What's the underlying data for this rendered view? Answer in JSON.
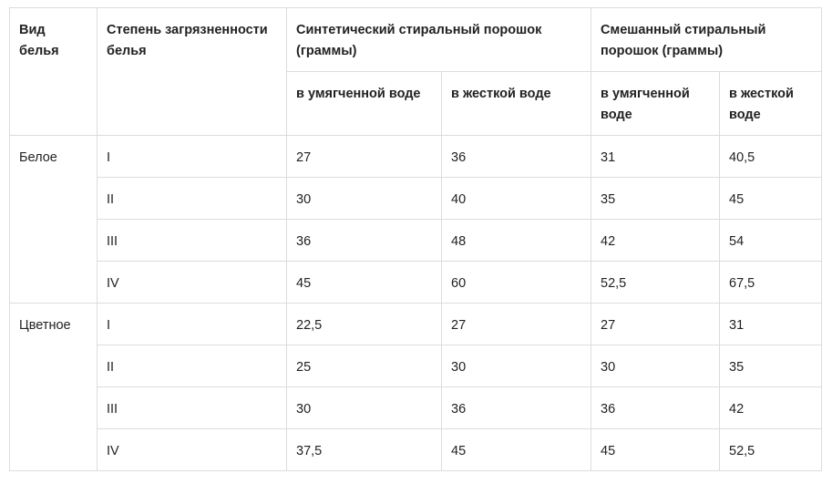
{
  "header": {
    "col_type": "Вид белья",
    "col_degree": "Степень загрязненности белья",
    "group_synthetic": "Синтетический стиральный порошок (граммы)",
    "group_mixed": "Смешанный стиральный порошок (граммы)",
    "sub_soft_1": "в умягченной воде",
    "sub_hard_1": "в жесткой воде",
    "sub_soft_2": "в умягченной воде",
    "sub_hard_2": "в жесткой воде"
  },
  "groups": [
    {
      "type": "Белое",
      "rows": [
        {
          "degree": "I",
          "syn_soft": "27",
          "syn_hard": "36",
          "mix_soft": "31",
          "mix_hard": "40,5"
        },
        {
          "degree": "II",
          "syn_soft": "30",
          "syn_hard": "40",
          "mix_soft": "35",
          "mix_hard": "45"
        },
        {
          "degree": "III",
          "syn_soft": "36",
          "syn_hard": "48",
          "mix_soft": "42",
          "mix_hard": "54"
        },
        {
          "degree": "IV",
          "syn_soft": "45",
          "syn_hard": "60",
          "mix_soft": "52,5",
          "mix_hard": "67,5"
        }
      ]
    },
    {
      "type": "Цветное",
      "rows": [
        {
          "degree": "I",
          "syn_soft": "22,5",
          "syn_hard": "27",
          "mix_soft": "27",
          "mix_hard": "31"
        },
        {
          "degree": "II",
          "syn_soft": "25",
          "syn_hard": "30",
          "mix_soft": "30",
          "mix_hard": "35"
        },
        {
          "degree": "III",
          "syn_soft": "30",
          "syn_hard": "36",
          "mix_soft": "36",
          "mix_hard": "42"
        },
        {
          "degree": "IV",
          "syn_soft": "37,5",
          "syn_hard": "45",
          "mix_soft": "45",
          "mix_hard": "52,5"
        }
      ]
    }
  ]
}
